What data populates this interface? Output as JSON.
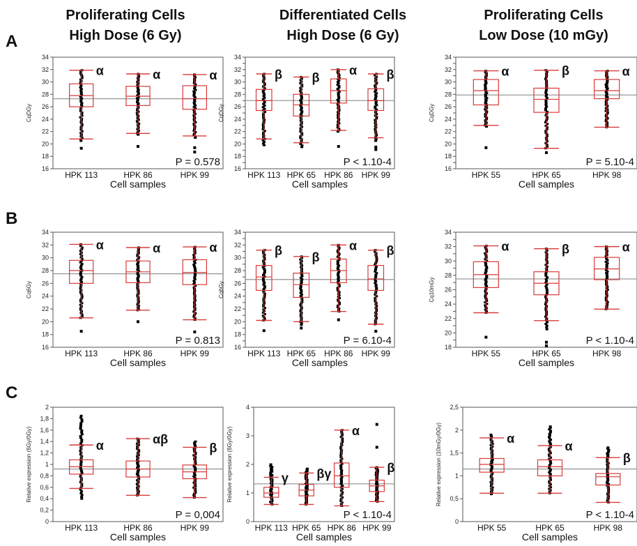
{
  "headers": [
    {
      "line1": "Proliferating Cells",
      "line2": "High Dose (6 Gy)"
    },
    {
      "line1": "Differentiated Cells",
      "line2": "High Dose (6 Gy)"
    },
    {
      "line1": "Proliferating Cells",
      "line2": "Low Dose (10 mGy)"
    }
  ],
  "row_labels": [
    "A",
    "B",
    "C"
  ],
  "colors": {
    "box": "#d83a3a",
    "mean_line": "#9a9a9a",
    "point": "#000000",
    "frame": "#555555"
  },
  "chart_data": [
    {
      "type": "box",
      "panel": "A1",
      "xlabel": "Cell samples",
      "ylabel": "CqDGy",
      "ylim": [
        16,
        34
      ],
      "yticks": [
        16,
        18,
        20,
        22,
        24,
        26,
        28,
        30,
        32,
        34
      ],
      "mean_line": 27.3,
      "p_value": "P = 0.578",
      "categories": [
        "HPK 113",
        "HPK 86",
        "HPK 99"
      ],
      "letters": [
        "α",
        "α",
        "α"
      ],
      "boxes": [
        {
          "q1": 26,
          "median": 27.8,
          "q3": 29.7,
          "wlo": 20.8,
          "whi": 31.9,
          "range": [
            20.5,
            31.9
          ],
          "outliers": [
            19.3
          ]
        },
        {
          "q1": 26.2,
          "median": 27.7,
          "q3": 29.3,
          "wlo": 21.7,
          "whi": 31.3,
          "range": [
            21.5,
            31.3
          ],
          "outliers": [
            19.6
          ]
        },
        {
          "q1": 25.6,
          "median": 27.3,
          "q3": 29.4,
          "wlo": 21.3,
          "whi": 31.2,
          "range": [
            21,
            31.2
          ],
          "outliers": [
            19.4,
            18.7
          ]
        }
      ]
    },
    {
      "type": "box",
      "panel": "A2",
      "xlabel": "Cell samples",
      "ylabel": "CqDGy",
      "ylim": [
        16,
        34
      ],
      "yticks": [
        16,
        17,
        18,
        19,
        20,
        21,
        22,
        23,
        24,
        25,
        26,
        27,
        28,
        29,
        30,
        31,
        32,
        33,
        34
      ],
      "mean_line": 27.0,
      "p_value": "P < 1.10-4",
      "categories": [
        "HPK 113",
        "HPK 65",
        "HPK 86",
        "HPK 99"
      ],
      "letters": [
        "β",
        "β",
        "α",
        "β"
      ],
      "boxes": [
        {
          "q1": 25.4,
          "median": 27.0,
          "q3": 28.8,
          "wlo": 20.8,
          "whi": 31.3,
          "range": [
            19.8,
            31.3
          ],
          "outliers": []
        },
        {
          "q1": 24.5,
          "median": 26.3,
          "q3": 28.0,
          "wlo": 20.2,
          "whi": 30.8,
          "range": [
            19.5,
            30.8
          ],
          "outliers": []
        },
        {
          "q1": 26.6,
          "median": 28.6,
          "q3": 30.5,
          "wlo": 22.2,
          "whi": 32.0,
          "range": [
            22,
            32
          ],
          "outliers": [
            19.6
          ]
        },
        {
          "q1": 25.4,
          "median": 27.0,
          "q3": 28.9,
          "wlo": 21.0,
          "whi": 31.3,
          "range": [
            20.5,
            31.3
          ],
          "outliers": [
            19.5,
            19.1
          ]
        }
      ]
    },
    {
      "type": "box",
      "panel": "A3",
      "xlabel": "Cell samples",
      "ylabel": "CqDGy",
      "ylim": [
        16,
        34
      ],
      "yticks": [
        16,
        17,
        18,
        19,
        20,
        21,
        22,
        23,
        24,
        25,
        26,
        27,
        28,
        29,
        30,
        31,
        32,
        33,
        34
      ],
      "mean_line": 27.9,
      "p_value": "P = 5.10-4",
      "categories": [
        "HPK 55",
        "HPK 65",
        "HPK 98"
      ],
      "letters": [
        "α",
        "β",
        "α"
      ],
      "boxes": [
        {
          "q1": 26.3,
          "median": 28.6,
          "q3": 30.4,
          "wlo": 23.0,
          "whi": 31.8,
          "range": [
            22.8,
            31.8
          ],
          "outliers": [
            19.4
          ]
        },
        {
          "q1": 25.1,
          "median": 27.2,
          "q3": 29.0,
          "wlo": 19.3,
          "whi": 31.9,
          "range": [
            19.3,
            31.9
          ],
          "outliers": [
            18.6
          ]
        },
        {
          "q1": 27.3,
          "median": 28.6,
          "q3": 30.4,
          "wlo": 22.7,
          "whi": 31.8,
          "range": [
            22.7,
            31.8
          ],
          "outliers": []
        }
      ]
    },
    {
      "type": "box",
      "panel": "B1",
      "xlabel": "Cell samples",
      "ylabel": "Cq6Gy",
      "ylim": [
        16,
        34
      ],
      "yticks": [
        16,
        18,
        20,
        22,
        24,
        26,
        28,
        30,
        32,
        34
      ],
      "mean_line": 27.5,
      "p_value": "P = 0.813",
      "categories": [
        "HPK 113",
        "HPK 86",
        "HPK 99"
      ],
      "letters": [
        "α",
        "α",
        "α"
      ],
      "boxes": [
        {
          "q1": 26.0,
          "median": 28.0,
          "q3": 29.6,
          "wlo": 20.6,
          "whi": 32.1,
          "range": [
            20.6,
            32.1
          ],
          "outliers": [
            18.5
          ]
        },
        {
          "q1": 26.1,
          "median": 27.8,
          "q3": 29.5,
          "wlo": 21.8,
          "whi": 31.6,
          "range": [
            21.8,
            31.6
          ],
          "outliers": [
            20.0
          ]
        },
        {
          "q1": 25.8,
          "median": 27.7,
          "q3": 29.7,
          "wlo": 20.3,
          "whi": 31.7,
          "range": [
            20.3,
            31.7
          ],
          "outliers": [
            18.4
          ]
        }
      ]
    },
    {
      "type": "box",
      "panel": "B2",
      "xlabel": "Cell samples",
      "ylabel": "Cq6Gy",
      "ylim": [
        16,
        34
      ],
      "yticks": [
        16,
        17,
        18,
        19,
        20,
        21,
        22,
        23,
        24,
        25,
        26,
        27,
        28,
        29,
        30,
        31,
        32,
        33,
        34
      ],
      "mean_line": 26.6,
      "p_value": "P = 6.10-4",
      "categories": [
        "HPK 113",
        "HPK 65",
        "HPK 86",
        "HPK 99"
      ],
      "letters": [
        "β",
        "β",
        "α",
        "β"
      ],
      "boxes": [
        {
          "q1": 24.9,
          "median": 27.0,
          "q3": 28.8,
          "wlo": 20.2,
          "whi": 31.2,
          "range": [
            20.2,
            31.2
          ],
          "outliers": [
            18.6
          ]
        },
        {
          "q1": 23.8,
          "median": 25.8,
          "q3": 27.6,
          "wlo": 20.0,
          "whi": 30.2,
          "range": [
            19.5,
            30.2
          ],
          "outliers": [
            19.0
          ]
        },
        {
          "q1": 26.1,
          "median": 28.0,
          "q3": 29.8,
          "wlo": 21.6,
          "whi": 32.0,
          "range": [
            21.6,
            32.0
          ],
          "outliers": [
            20.3
          ]
        },
        {
          "q1": 24.9,
          "median": 26.7,
          "q3": 28.8,
          "wlo": 19.6,
          "whi": 31.2,
          "range": [
            19.6,
            31.2
          ],
          "outliers": [
            18.5
          ]
        }
      ]
    },
    {
      "type": "box",
      "panel": "B3",
      "xlabel": "Cell samples",
      "ylabel": "Cq10mGy",
      "ylim": [
        18,
        34
      ],
      "yticks": [
        18,
        19,
        20,
        21,
        22,
        23,
        24,
        25,
        26,
        27,
        28,
        29,
        30,
        31,
        32,
        33,
        34
      ],
      "mean_line": 27.5,
      "p_value": "P < 1.10-4",
      "categories": [
        "HPK 55",
        "HPK 65",
        "HPK 98"
      ],
      "letters": [
        "α",
        "β",
        "α"
      ],
      "boxes": [
        {
          "q1": 26.3,
          "median": 28.1,
          "q3": 29.9,
          "wlo": 22.8,
          "whi": 32.1,
          "range": [
            22.8,
            32.1
          ],
          "outliers": [
            19.4
          ]
        },
        {
          "q1": 25.3,
          "median": 26.9,
          "q3": 28.5,
          "wlo": 21.7,
          "whi": 31.7,
          "range": [
            20.5,
            31.7
          ],
          "outliers": [
            18.7,
            18.2
          ]
        },
        {
          "q1": 27.4,
          "median": 28.9,
          "q3": 30.5,
          "wlo": 23.3,
          "whi": 32.0,
          "range": [
            23.3,
            32.0
          ],
          "outliers": []
        }
      ]
    },
    {
      "type": "box",
      "panel": "C1",
      "xlabel": "Cell samples",
      "ylabel": "Relative expression (6Gy/0Gy)",
      "ylim": [
        0,
        2
      ],
      "yticks": [
        0,
        0.2,
        0.4,
        0.6,
        0.8,
        1,
        1.2,
        1.4,
        1.6,
        1.8,
        2
      ],
      "ytick_labels": [
        "0",
        "0,2",
        "0,4",
        "0,6",
        "0,8",
        "1",
        "1,2",
        "1,4",
        "1,6",
        "1,8",
        "2"
      ],
      "mean_line": 0.92,
      "p_value": "P = 0,004",
      "categories": [
        "HPK 113",
        "HPK 86",
        "HPK 99"
      ],
      "letters": [
        "α",
        "αβ",
        "β"
      ],
      "boxes": [
        {
          "q1": 0.83,
          "median": 0.96,
          "q3": 1.08,
          "wlo": 0.58,
          "whi": 1.34,
          "range": [
            0.4,
            1.85
          ],
          "outliers": []
        },
        {
          "q1": 0.78,
          "median": 0.92,
          "q3": 1.06,
          "wlo": 0.46,
          "whi": 1.45,
          "range": [
            0.46,
            1.45
          ],
          "outliers": []
        },
        {
          "q1": 0.75,
          "median": 0.87,
          "q3": 0.99,
          "wlo": 0.42,
          "whi": 1.3,
          "range": [
            0.42,
            1.4
          ],
          "outliers": []
        }
      ]
    },
    {
      "type": "box",
      "panel": "C2",
      "xlabel": "Cell samples",
      "ylabel": "Relative expression (6Gy/0Gy)",
      "ylim": [
        0,
        4
      ],
      "yticks": [
        0,
        1,
        2,
        3,
        4
      ],
      "ytick_labels": [
        "0",
        "1",
        "2",
        "3",
        "4"
      ],
      "mean_line": 1.32,
      "p_value": "P < 1.10-4",
      "categories": [
        "HPK 113",
        "HPK 65",
        "HPK 86",
        "HPK 99"
      ],
      "letters": [
        "γ",
        "βγ",
        "α",
        "β"
      ],
      "boxes": [
        {
          "q1": 0.85,
          "median": 1.0,
          "q3": 1.2,
          "wlo": 0.6,
          "whi": 1.55,
          "range": [
            0.6,
            2.0
          ],
          "outliers": []
        },
        {
          "q1": 0.9,
          "median": 1.1,
          "q3": 1.3,
          "wlo": 0.6,
          "whi": 1.7,
          "range": [
            0.6,
            1.85
          ],
          "outliers": []
        },
        {
          "q1": 1.2,
          "median": 1.6,
          "q3": 2.05,
          "wlo": 0.55,
          "whi": 3.2,
          "range": [
            0.55,
            3.2
          ],
          "outliers": []
        },
        {
          "q1": 1.05,
          "median": 1.25,
          "q3": 1.45,
          "wlo": 0.7,
          "whi": 1.9,
          "range": [
            0.7,
            1.9
          ],
          "outliers": [
            2.6,
            3.4
          ]
        }
      ]
    },
    {
      "type": "box",
      "panel": "C3",
      "xlabel": "Cell samples",
      "ylabel": "Relative expression (10mGy/0Gy)",
      "ylim": [
        0,
        2.5
      ],
      "yticks": [
        0,
        0.5,
        1,
        1.5,
        2,
        2.5
      ],
      "ytick_labels": [
        "0",
        "0,5",
        "1",
        "1,5",
        "2",
        "2,5"
      ],
      "mean_line": 1.15,
      "p_value": "P < 1.10-4",
      "categories": [
        "HPK 55",
        "HPK 65",
        "HPK 98"
      ],
      "letters": [
        "α",
        "α",
        "β"
      ],
      "boxes": [
        {
          "q1": 1.08,
          "median": 1.25,
          "q3": 1.38,
          "wlo": 0.62,
          "whi": 1.83,
          "range": [
            0.6,
            1.9
          ],
          "outliers": []
        },
        {
          "q1": 1.0,
          "median": 1.2,
          "q3": 1.35,
          "wlo": 0.62,
          "whi": 1.66,
          "range": [
            0.62,
            2.08
          ],
          "outliers": []
        },
        {
          "q1": 0.8,
          "median": 0.98,
          "q3": 1.05,
          "wlo": 0.42,
          "whi": 1.4,
          "range": [
            0.42,
            1.62
          ],
          "outliers": []
        }
      ]
    }
  ]
}
